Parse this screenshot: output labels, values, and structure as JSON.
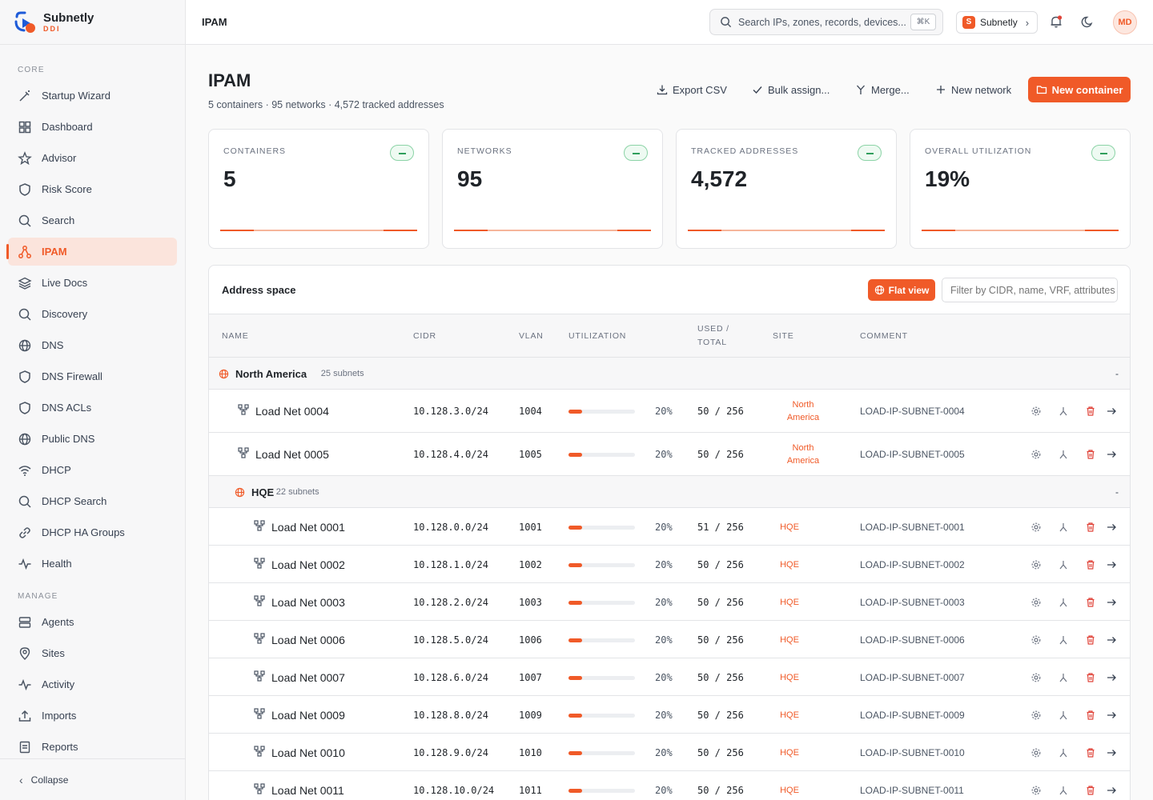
{
  "brand": {
    "name": "Subnetly",
    "sub": "DDI"
  },
  "sidebar": {
    "core_label": "CORE",
    "core": [
      {
        "label": "Startup Wizard",
        "icon": "wand-icon"
      },
      {
        "label": "Dashboard",
        "icon": "grid-icon"
      },
      {
        "label": "Advisor",
        "icon": "star-icon"
      },
      {
        "label": "Risk Score",
        "icon": "shield-icon"
      },
      {
        "label": "Search",
        "icon": "search-icon"
      },
      {
        "label": "IPAM",
        "icon": "network-icon",
        "active": true
      },
      {
        "label": "Live Docs",
        "icon": "layers-icon"
      },
      {
        "label": "Discovery",
        "icon": "search-icon"
      },
      {
        "label": "DNS",
        "icon": "globe-icon"
      },
      {
        "label": "DNS Firewall",
        "icon": "shield-icon"
      },
      {
        "label": "DNS ACLs",
        "icon": "shield-icon"
      },
      {
        "label": "Public DNS",
        "icon": "globe-icon"
      },
      {
        "label": "DHCP",
        "icon": "wifi-icon"
      },
      {
        "label": "DHCP Search",
        "icon": "search-icon"
      },
      {
        "label": "DHCP HA Groups",
        "icon": "link-icon"
      },
      {
        "label": "Health",
        "icon": "pulse-icon"
      }
    ],
    "manage_label": "MANAGE",
    "manage": [
      {
        "label": "Agents",
        "icon": "server-icon"
      },
      {
        "label": "Sites",
        "icon": "pin-icon"
      },
      {
        "label": "Activity",
        "icon": "pulse-icon"
      },
      {
        "label": "Imports",
        "icon": "upload-icon"
      },
      {
        "label": "Reports",
        "icon": "report-icon"
      }
    ],
    "collapse_label": "Collapse"
  },
  "topbar": {
    "breadcrumb": "IPAM",
    "search_placeholder": "Search IPs, zones, records, devices...",
    "search_kbd": "⌘K",
    "tenant_badge": "S",
    "tenant_name": "Subnetly",
    "avatar_initials": "MD"
  },
  "page": {
    "title": "IPAM",
    "subtitle": "5 containers · 95 networks · 4,572 tracked addresses",
    "actions": {
      "export": "Export CSV",
      "bulk": "Bulk assign...",
      "merge": "Merge...",
      "new_network": "New network",
      "new_container": "New container"
    }
  },
  "stats": [
    {
      "label": "CONTAINERS",
      "value": "5"
    },
    {
      "label": "NETWORKS",
      "value": "95"
    },
    {
      "label": "TRACKED ADDRESSES",
      "value": "4,572"
    },
    {
      "label": "OVERALL UTILIZATION",
      "value": "19%"
    }
  ],
  "address_space": {
    "title": "Address space",
    "flat_view": "Flat view",
    "filter_placeholder": "Filter by CIDR, name, VRF, attributes",
    "columns": {
      "name": "NAME",
      "cidr": "CIDR",
      "vlan": "VLAN",
      "utilization": "UTILIZATION",
      "used": "USED /",
      "total": "TOTAL",
      "site": "SITE",
      "comment": "COMMENT"
    },
    "groups": [
      {
        "name": "North America",
        "count": "25 subnets",
        "toggle": "-"
      },
      {
        "name": "HQE",
        "count": "22 subnets",
        "toggle": "-"
      }
    ],
    "rows": [
      {
        "name": "Load Net 0004",
        "cidr": "10.128.3.0/24",
        "vlan": "1004",
        "util": 20,
        "pct": "20%",
        "used": "50 / 256",
        "site_a": "North",
        "site_b": "America",
        "comment": "LOAD-IP-SUBNET-0004"
      },
      {
        "name": "Load Net 0005",
        "cidr": "10.128.4.0/24",
        "vlan": "1005",
        "util": 20,
        "pct": "20%",
        "used": "50 / 256",
        "site_a": "North",
        "site_b": "America",
        "comment": "LOAD-IP-SUBNET-0005"
      },
      {
        "name": "Load Net 0001",
        "cidr": "10.128.0.0/24",
        "vlan": "1001",
        "util": 20,
        "pct": "20%",
        "used": "51 / 256",
        "site_a": "HQE",
        "site_b": "",
        "comment": "LOAD-IP-SUBNET-0001"
      },
      {
        "name": "Load Net 0002",
        "cidr": "10.128.1.0/24",
        "vlan": "1002",
        "util": 20,
        "pct": "20%",
        "used": "50 / 256",
        "site_a": "HQE",
        "site_b": "",
        "comment": "LOAD-IP-SUBNET-0002"
      },
      {
        "name": "Load Net 0003",
        "cidr": "10.128.2.0/24",
        "vlan": "1003",
        "util": 20,
        "pct": "20%",
        "used": "50 / 256",
        "site_a": "HQE",
        "site_b": "",
        "comment": "LOAD-IP-SUBNET-0003"
      },
      {
        "name": "Load Net 0006",
        "cidr": "10.128.5.0/24",
        "vlan": "1006",
        "util": 20,
        "pct": "20%",
        "used": "50 / 256",
        "site_a": "HQE",
        "site_b": "",
        "comment": "LOAD-IP-SUBNET-0006"
      },
      {
        "name": "Load Net 0007",
        "cidr": "10.128.6.0/24",
        "vlan": "1007",
        "util": 20,
        "pct": "20%",
        "used": "50 / 256",
        "site_a": "HQE",
        "site_b": "",
        "comment": "LOAD-IP-SUBNET-0007"
      },
      {
        "name": "Load Net 0009",
        "cidr": "10.128.8.0/24",
        "vlan": "1009",
        "util": 20,
        "pct": "20%",
        "used": "50 / 256",
        "site_a": "HQE",
        "site_b": "",
        "comment": "LOAD-IP-SUBNET-0009"
      },
      {
        "name": "Load Net 0010",
        "cidr": "10.128.9.0/24",
        "vlan": "1010",
        "util": 20,
        "pct": "20%",
        "used": "50 / 256",
        "site_a": "HQE",
        "site_b": "",
        "comment": "LOAD-IP-SUBNET-0010"
      },
      {
        "name": "Load Net 0011",
        "cidr": "10.128.10.0/24",
        "vlan": "1011",
        "util": 20,
        "pct": "20%",
        "used": "50 / 256",
        "site_a": "HQE",
        "site_b": "",
        "comment": "LOAD-IP-SUBNET-0011"
      }
    ]
  },
  "colors": {
    "accent": "#f05a28",
    "success": "#2f9e5c",
    "danger": "#e0443a"
  }
}
